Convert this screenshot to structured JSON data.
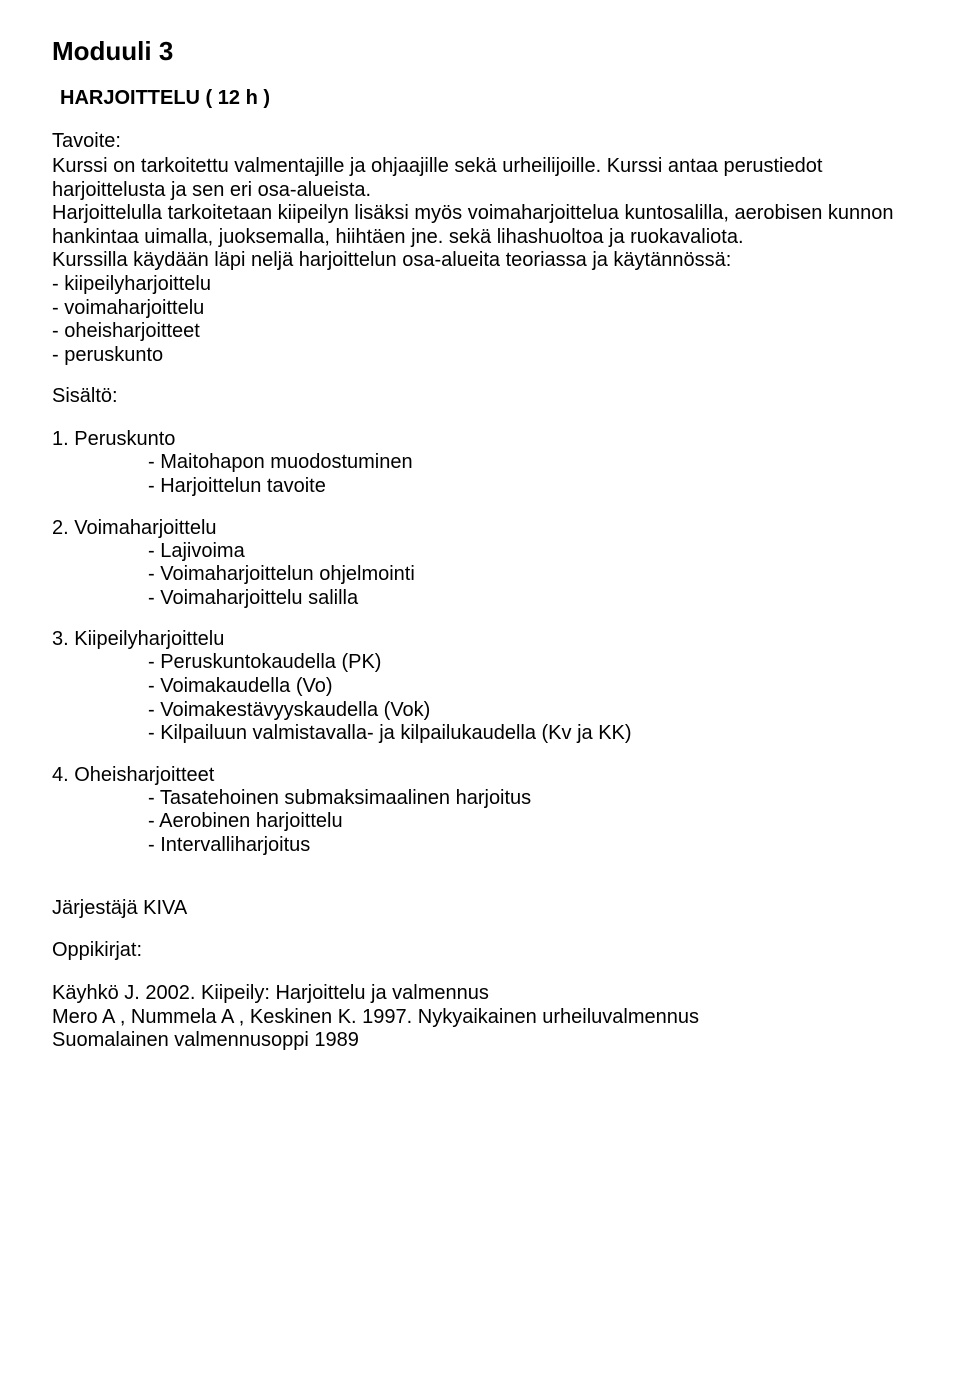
{
  "module_title": "Moduuli 3",
  "subject_title": "HARJOITTELU ( 12 h )",
  "tavoite_label": "Tavoite:",
  "tavoite_p1": "Kurssi on tarkoitettu valmentajille ja ohjaajille sekä urheilijoille. Kurssi antaa perustiedot harjoittelusta ja sen eri osa-alueista.",
  "tavoite_p2": "Harjoittelulla tarkoitetaan kiipeilyn lisäksi myös voimaharjoittelua kuntosalilla, aerobisen kunnon hankintaa uimalla, juoksemalla, hiihtäen jne. sekä lihashuoltoa ja ruokavaliota.",
  "tavoite_p3": "Kurssilla käydään läpi neljä harjoittelun osa-alueita teoriassa ja käytännössä:",
  "tavoite_bullets": [
    "- kiipeilyharjoittelu",
    "- voimaharjoittelu",
    "- oheisharjoitteet",
    "- peruskunto"
  ],
  "sisalto_label": "Sisältö:",
  "sections": [
    {
      "heading": "1. Peruskunto",
      "items": [
        "- Maitohapon muodostuminen",
        "- Harjoittelun tavoite"
      ]
    },
    {
      "heading": "2. Voimaharjoittelu",
      "items": [
        "- Lajivoima",
        "- Voimaharjoittelun ohjelmointi",
        "- Voimaharjoittelu salilla"
      ]
    },
    {
      "heading": "3. Kiipeilyharjoittelu",
      "items": [
        "- Peruskuntokaudella (PK)",
        "- Voimakaudella (Vo)",
        "- Voimakestävyyskaudella (Vok)",
        "- Kilpailuun  valmistavalla- ja kilpailukaudella (Kv ja KK)"
      ]
    },
    {
      "heading": "4. Oheisharjoitteet",
      "items": [
        "- Tasatehoinen submaksimaalinen harjoitus",
        "- Aerobinen harjoittelu",
        "- Intervalliharjoitus"
      ]
    }
  ],
  "jarjestaja": "Järjestäjä KIVA",
  "oppikirjat_label": "Oppikirjat:",
  "oppikirjat": [
    "Käyhkö J. 2002.  Kiipeily: Harjoittelu ja valmennus",
    "Mero A ,  Nummela A , Keskinen K. 1997.  Nykyaikainen urheiluvalmennus",
    "Suomalainen valmennusoppi 1989"
  ]
}
